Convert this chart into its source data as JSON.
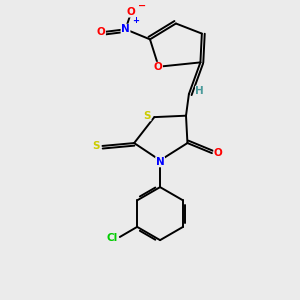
{
  "bg_color": "#ebebeb",
  "atom_colors": {
    "C": "#000000",
    "H": "#4a9a9a",
    "N": "#0000ff",
    "O": "#ff0000",
    "S": "#cccc00",
    "Cl": "#00cc00"
  },
  "bond_color": "#000000",
  "lw": 1.4
}
